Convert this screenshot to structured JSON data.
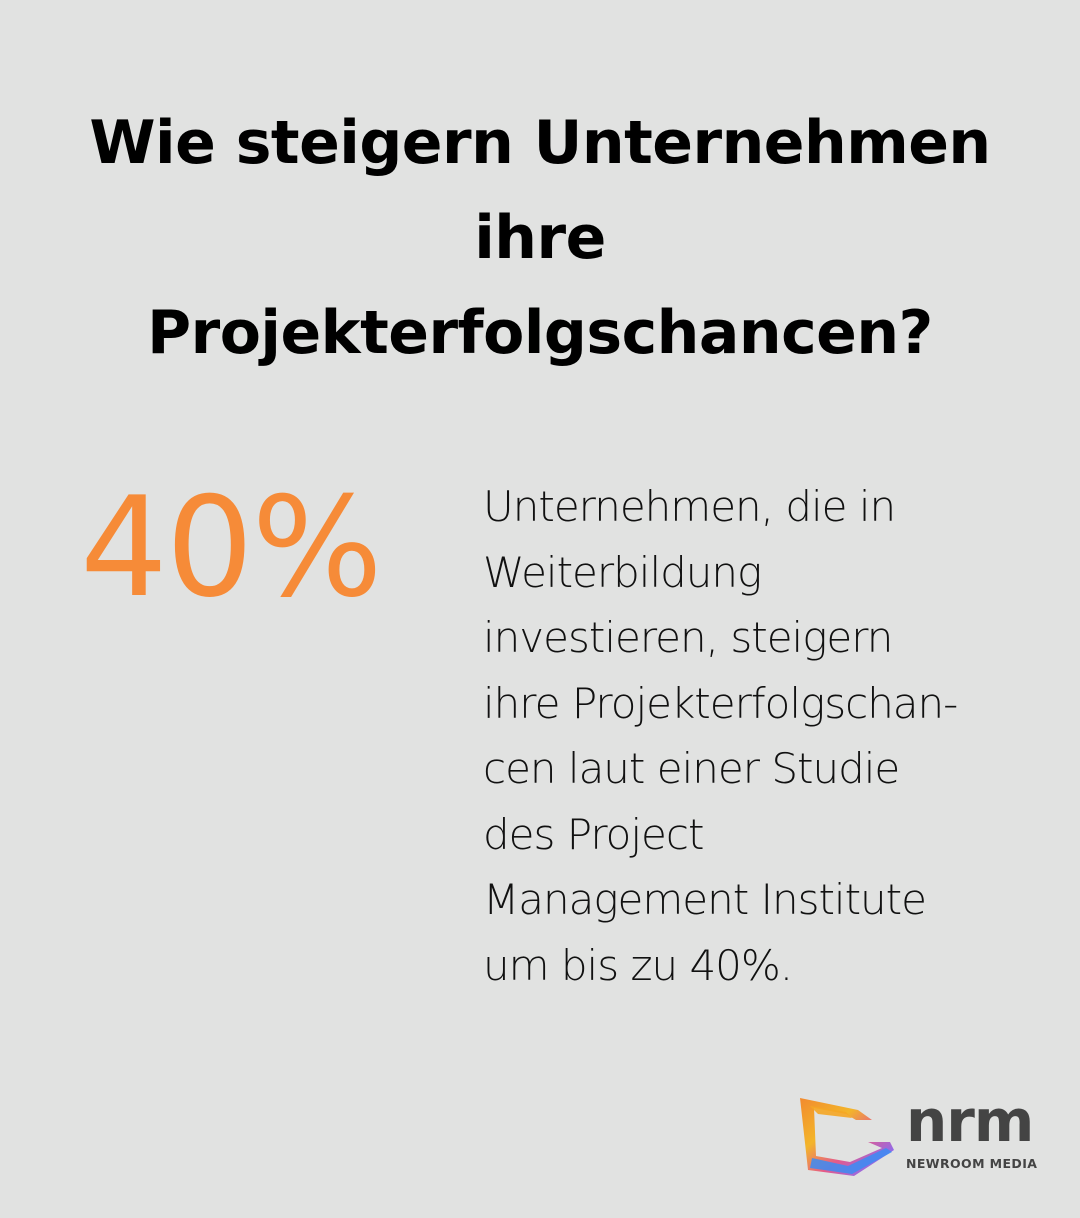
{
  "title_lines": [
    "Wie steigern Unternehmen",
    "ihre",
    "Projekterfolgschancen?"
  ],
  "stat": {
    "value": "40%",
    "color": "#f68b38"
  },
  "description_lines": [
    "Unternehmen, die in",
    "Weiterbildung",
    "investieren, steigern",
    "ihre Projekterfolgschan-",
    "cen laut einer Studie",
    "des Project",
    "Management Institute",
    "um bis zu 40%."
  ],
  "logo": {
    "wordmark": "nrm",
    "subtitle": "NEWROOM MEDIA",
    "icon": "nrm-logo-mark-icon"
  },
  "colors": {
    "background": "#e1e2e1",
    "text": "#111111",
    "accent": "#f68b38"
  }
}
